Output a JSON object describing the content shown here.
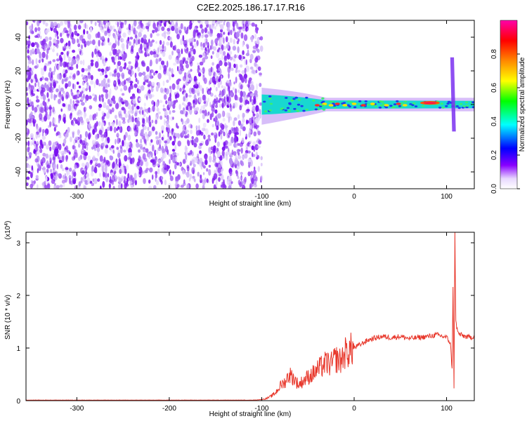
{
  "chart_data": [
    {
      "type": "heatmap",
      "title": "C2E2.2025.186.17.17.R16",
      "xlabel": "Height of straight line (km)",
      "ylabel": "Frequency (Hz)",
      "xlim": [
        -355,
        130
      ],
      "ylim": [
        -50,
        50
      ],
      "xticks": [
        -300,
        -200,
        -100,
        0,
        100
      ],
      "yticks": [
        -40,
        -20,
        0,
        20,
        40
      ],
      "colorbar": {
        "label": "Normalized spectral amplitude",
        "range": [
          0.0,
          1.0
        ],
        "ticks": [
          0.0,
          0.2,
          0.4,
          0.6,
          0.8
        ],
        "colormap": [
          "#ffffff",
          "#8800ff",
          "#0000ff",
          "#00ffff",
          "#00ff00",
          "#ffff00",
          "#ff8800",
          "#ff0000",
          "#ff00aa"
        ]
      },
      "regions": [
        {
          "x": [
            -355,
            -100
          ],
          "f": [
            -50,
            50
          ],
          "amplitude": [
            0.05,
            0.25
          ],
          "pattern": "diffuse noise"
        },
        {
          "x": [
            -100,
            -30
          ],
          "f": [
            -8,
            8
          ],
          "amplitude": [
            0.3,
            0.6
          ],
          "pattern": "broadening signal near 0 Hz"
        },
        {
          "x": [
            -30,
            130
          ],
          "f": [
            -3,
            3
          ],
          "amplitude": [
            0.5,
            1.0
          ],
          "pattern": "narrow line at 0 Hz"
        },
        {
          "x": [
            104,
            110
          ],
          "f": [
            -15,
            30
          ],
          "amplitude": [
            0.2,
            0.4
          ],
          "pattern": "vertical spike"
        }
      ],
      "grid": false
    },
    {
      "type": "line",
      "ylabel": "SNR (10 * v/v)",
      "xlabel": "Height of straight line (km)",
      "scale_label": "(x10^4)",
      "ylim": [
        0,
        3.2
      ],
      "xlim": [
        -355,
        130
      ],
      "xticks": [
        -300,
        -200,
        -100,
        0,
        100
      ],
      "yticks": [
        0,
        1,
        2,
        3
      ],
      "color": "#e8382c",
      "grid": false,
      "series": [
        {
          "x": [
            -355,
            -300,
            -250,
            -200,
            -150,
            -110,
            -100,
            -95,
            -90,
            -85,
            -80,
            -75,
            -70,
            -65,
            -60,
            -55,
            -50,
            -45,
            -40,
            -35,
            -30,
            -25,
            -20,
            -15,
            -10,
            -5,
            0,
            5,
            10,
            15,
            20,
            25,
            30,
            40,
            50,
            60,
            70,
            80,
            90,
            100,
            104,
            106,
            107,
            108,
            109,
            110,
            112,
            115,
            120,
            125,
            130
          ],
          "y": [
            0.01,
            0.01,
            0.01,
            0.01,
            0.01,
            0.01,
            0.02,
            0.04,
            0.08,
            0.15,
            0.28,
            0.35,
            0.5,
            0.42,
            0.3,
            0.38,
            0.45,
            0.5,
            0.58,
            0.65,
            0.72,
            0.68,
            0.8,
            0.75,
            0.9,
            0.95,
            1.0,
            1.05,
            1.1,
            1.15,
            1.18,
            1.2,
            1.22,
            1.2,
            1.22,
            1.18,
            1.2,
            1.22,
            1.25,
            1.2,
            1.1,
            0.6,
            2.2,
            0.25,
            3.2,
            1.5,
            1.3,
            1.25,
            1.22,
            1.2,
            1.22
          ]
        }
      ]
    }
  ]
}
